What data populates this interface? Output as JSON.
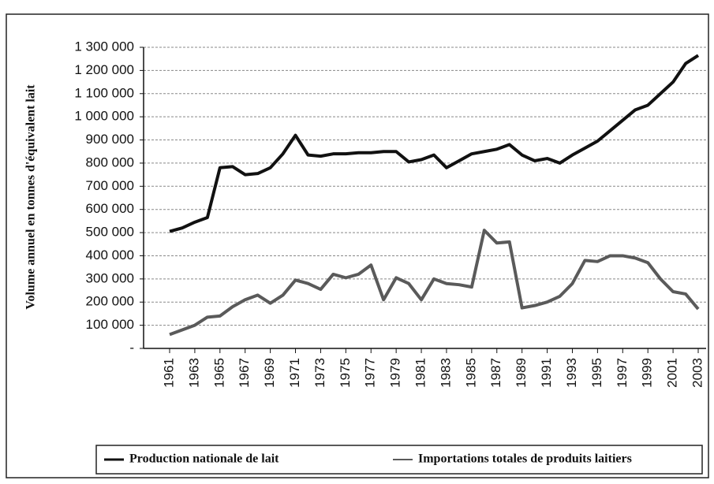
{
  "chart_data": {
    "type": "line",
    "y_label": "Volume annuel en tonnes d'équivalent lait",
    "x": [
      1961,
      1962,
      1963,
      1964,
      1965,
      1966,
      1967,
      1968,
      1969,
      1970,
      1971,
      1972,
      1973,
      1974,
      1975,
      1976,
      1977,
      1978,
      1979,
      1980,
      1981,
      1982,
      1983,
      1984,
      1985,
      1986,
      1987,
      1988,
      1989,
      1990,
      1991,
      1992,
      1993,
      1994,
      1995,
      1996,
      1997,
      1998,
      1999,
      2000,
      2001,
      2002,
      2003
    ],
    "xlim": [
      1961,
      2003
    ],
    "xticks": [
      1961,
      1963,
      1965,
      1967,
      1969,
      1971,
      1973,
      1975,
      1977,
      1979,
      1981,
      1983,
      1985,
      1987,
      1989,
      1991,
      1993,
      1995,
      1997,
      1999,
      2001,
      2003
    ],
    "ylim": [
      0,
      1300000
    ],
    "yticks": [
      {
        "value": 0,
        "label": "-"
      },
      {
        "value": 100000,
        "label": "100 000"
      },
      {
        "value": 200000,
        "label": "200 000"
      },
      {
        "value": 300000,
        "label": "300 000"
      },
      {
        "value": 400000,
        "label": "400 000"
      },
      {
        "value": 500000,
        "label": "500 000"
      },
      {
        "value": 600000,
        "label": "600 000"
      },
      {
        "value": 700000,
        "label": "700 000"
      },
      {
        "value": 800000,
        "label": "800 000"
      },
      {
        "value": 900000,
        "label": "900 000"
      },
      {
        "value": 1000000,
        "label": "1 000 000"
      },
      {
        "value": 1100000,
        "label": "1 100 000"
      },
      {
        "value": 1200000,
        "label": "1 200 000"
      },
      {
        "value": 1300000,
        "label": "1 300 000"
      }
    ],
    "grid": true,
    "series": [
      {
        "name": "Production nationale de lait",
        "color": "#111111",
        "values": [
          505000,
          520000,
          545000,
          565000,
          780000,
          785000,
          750000,
          755000,
          780000,
          840000,
          920000,
          835000,
          830000,
          840000,
          840000,
          845000,
          845000,
          850000,
          850000,
          805000,
          815000,
          835000,
          780000,
          810000,
          840000,
          850000,
          860000,
          880000,
          835000,
          810000,
          820000,
          800000,
          835000,
          865000,
          895000,
          940000,
          985000,
          1030000,
          1050000,
          1100000,
          1150000,
          1230000,
          1265000
        ]
      },
      {
        "name": "Importations totales de produits laitiers",
        "color": "#5a5a5a",
        "values": [
          60000,
          80000,
          100000,
          135000,
          140000,
          180000,
          210000,
          230000,
          195000,
          230000,
          295000,
          280000,
          255000,
          320000,
          305000,
          320000,
          360000,
          210000,
          305000,
          280000,
          210000,
          300000,
          280000,
          275000,
          265000,
          510000,
          455000,
          460000,
          175000,
          185000,
          200000,
          225000,
          280000,
          380000,
          375000,
          400000,
          400000,
          390000,
          370000,
          300000,
          245000,
          235000,
          170000
        ]
      }
    ]
  }
}
